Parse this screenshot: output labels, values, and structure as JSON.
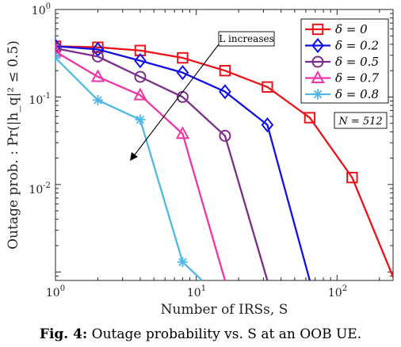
{
  "chart_data": {
    "type": "line",
    "xscale": "log",
    "yscale": "log",
    "xlim": [
      1,
      250
    ],
    "ylim": [
      0.0008,
      1
    ],
    "x_ticks": [
      1,
      10,
      100
    ],
    "x_tick_labels": [
      {
        "base": "10",
        "exp": "0"
      },
      {
        "base": "10",
        "exp": "1"
      },
      {
        "base": "10",
        "exp": "2"
      }
    ],
    "y_ticks": [
      0.01,
      0.1,
      1
    ],
    "y_tick_labels": [
      {
        "base": "10",
        "exp": "-2"
      },
      {
        "base": "10",
        "exp": "-1"
      },
      {
        "base": "10",
        "exp": "0"
      }
    ],
    "xlabel": "Number of IRSs, S",
    "ylabel": "Outage prob. : Pr(|h_q|² ≤ 0.5)",
    "grid": false,
    "legend_position": "top-right",
    "series": [
      {
        "name": "δ = 0",
        "color": "#e8141a",
        "marker": "square",
        "x": [
          1,
          2,
          4,
          8,
          16,
          32,
          64,
          128,
          256
        ],
        "y": [
          0.38,
          0.37,
          0.34,
          0.28,
          0.2,
          0.13,
          0.058,
          0.012,
          0.0008
        ]
      },
      {
        "name": "δ = 0.2",
        "color": "#1010e6",
        "marker": "diamond",
        "x": [
          1,
          2,
          4,
          8,
          16,
          32,
          64
        ],
        "y": [
          0.38,
          0.35,
          0.26,
          0.19,
          0.115,
          0.048,
          0.0008
        ]
      },
      {
        "name": "δ = 0.5",
        "color": "#7b2d8c",
        "marker": "circle",
        "x": [
          1,
          2,
          4,
          8,
          16,
          32
        ],
        "y": [
          0.36,
          0.29,
          0.17,
          0.1,
          0.036,
          0.0008
        ]
      },
      {
        "name": "δ = 0.7",
        "color": "#ef36a8",
        "marker": "triangle",
        "x": [
          1,
          2,
          4,
          8,
          16
        ],
        "y": [
          0.33,
          0.17,
          0.105,
          0.038,
          0.0008
        ]
      },
      {
        "name": "δ = 0.8",
        "color": "#4fb8e6",
        "marker": "asterisk",
        "x": [
          1,
          2,
          4,
          8,
          11
        ],
        "y": [
          0.28,
          0.092,
          0.055,
          0.0013,
          0.0008
        ]
      }
    ],
    "annotations": [
      {
        "text": "L increases",
        "type": "arrow"
      },
      {
        "text": "N = 512",
        "type": "box"
      }
    ]
  },
  "caption": {
    "prefix": "Fig. 4:",
    "text": "Outage probability vs. S at an OOB UE."
  }
}
